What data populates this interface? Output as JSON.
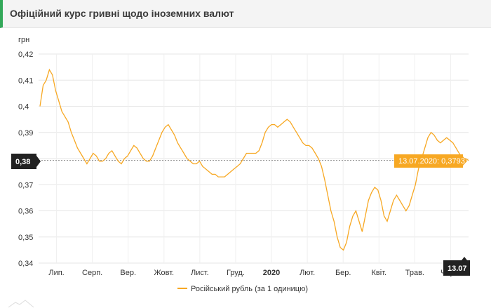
{
  "header": {
    "title": "Офіційний курс гривні щодо іноземних валют"
  },
  "chart_data": {
    "type": "line",
    "ylabel": "грн",
    "ylim": [
      0.34,
      0.42
    ],
    "y_ticks": [
      "0,42",
      "0,41",
      "0,4",
      "0,39",
      "0,38",
      "0,37",
      "0,36",
      "0,35",
      "0,34"
    ],
    "y_tick_values": [
      0.42,
      0.41,
      0.4,
      0.39,
      0.38,
      0.37,
      0.36,
      0.35,
      0.34
    ],
    "x_ticks": [
      "Лип.",
      "Серп.",
      "Вер.",
      "Жовт.",
      "Лист.",
      "Груд.",
      "2020",
      "Лют.",
      "Бер.",
      "Квіт.",
      "Трав.",
      "Черв."
    ],
    "x_ticks_bold": [
      "2020"
    ],
    "grid": true,
    "legend_position": "bottom-center",
    "series": [
      {
        "name": "Російський рубль (за 1 одиницю)",
        "color": "#f7a823",
        "values": [
          0.4,
          0.408,
          0.41,
          0.414,
          0.412,
          0.406,
          0.402,
          0.398,
          0.396,
          0.394,
          0.39,
          0.387,
          0.384,
          0.382,
          0.38,
          0.378,
          0.38,
          0.382,
          0.381,
          0.379,
          0.379,
          0.38,
          0.382,
          0.383,
          0.381,
          0.379,
          0.378,
          0.38,
          0.381,
          0.383,
          0.385,
          0.384,
          0.382,
          0.38,
          0.379,
          0.379,
          0.381,
          0.384,
          0.387,
          0.39,
          0.392,
          0.393,
          0.391,
          0.389,
          0.386,
          0.384,
          0.382,
          0.38,
          0.379,
          0.378,
          0.378,
          0.379,
          0.377,
          0.376,
          0.375,
          0.374,
          0.374,
          0.373,
          0.373,
          0.373,
          0.374,
          0.375,
          0.376,
          0.377,
          0.378,
          0.38,
          0.382,
          0.382,
          0.382,
          0.382,
          0.383,
          0.386,
          0.39,
          0.392,
          0.393,
          0.393,
          0.392,
          0.393,
          0.394,
          0.395,
          0.394,
          0.392,
          0.39,
          0.388,
          0.386,
          0.385,
          0.385,
          0.384,
          0.382,
          0.38,
          0.377,
          0.372,
          0.366,
          0.36,
          0.356,
          0.35,
          0.346,
          0.345,
          0.348,
          0.354,
          0.358,
          0.36,
          0.356,
          0.352,
          0.358,
          0.364,
          0.367,
          0.369,
          0.368,
          0.364,
          0.358,
          0.356,
          0.36,
          0.364,
          0.366,
          0.364,
          0.362,
          0.36,
          0.362,
          0.366,
          0.37,
          0.376,
          0.38,
          0.384,
          0.388,
          0.39,
          0.389,
          0.387,
          0.386,
          0.387,
          0.388,
          0.387,
          0.386,
          0.384,
          0.382,
          0.38,
          0.38,
          0.3793
        ],
        "current_point": {
          "date": "13.07.2020",
          "value_label": "0,3793"
        }
      }
    ],
    "badges": {
      "y_value": "0,38",
      "x_date": "13.07"
    }
  }
}
